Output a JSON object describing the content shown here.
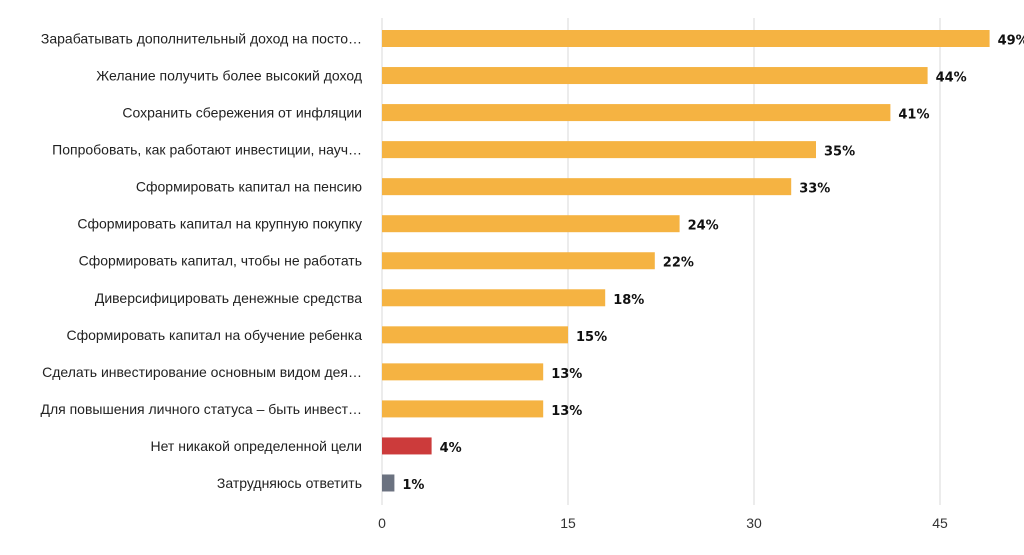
{
  "chart_data": {
    "type": "bar",
    "orientation": "horizontal",
    "categories": [
      "Зарабатывать дополнительный доход на посто…",
      "Желание получить более высокий доход",
      "Сохранить сбережения от инфляции",
      "Попробовать, как работают инвестиции, науч…",
      "Сформировать капитал на пенсию",
      "Сформировать капитал на крупную покупку",
      "Сформировать капитал, чтобы не работать",
      "Диверсифицировать денежные средства",
      "Сформировать капитал на обучение ребенка",
      "Сделать инвестирование основным видом дея…",
      "Для повышения личного статуса – быть инвест…",
      "Нет никакой определенной цели",
      "Затрудняюсь ответить"
    ],
    "values": [
      49,
      44,
      41,
      35,
      33,
      24,
      22,
      18,
      15,
      13,
      13,
      4,
      1
    ],
    "value_labels": [
      "49%",
      "44%",
      "41%",
      "35%",
      "33%",
      "24%",
      "22%",
      "18%",
      "15%",
      "13%",
      "13%",
      "4%",
      "1%"
    ],
    "bar_colors": [
      "#f5b342",
      "#f5b342",
      "#f5b342",
      "#f5b342",
      "#f5b342",
      "#f5b342",
      "#f5b342",
      "#f5b342",
      "#f5b342",
      "#f5b342",
      "#f5b342",
      "#cc3b3b",
      "#6b7280"
    ],
    "x_ticks": [
      0,
      15,
      30,
      45
    ],
    "xlim": [
      0,
      50
    ],
    "grid": true,
    "legend": "none"
  }
}
